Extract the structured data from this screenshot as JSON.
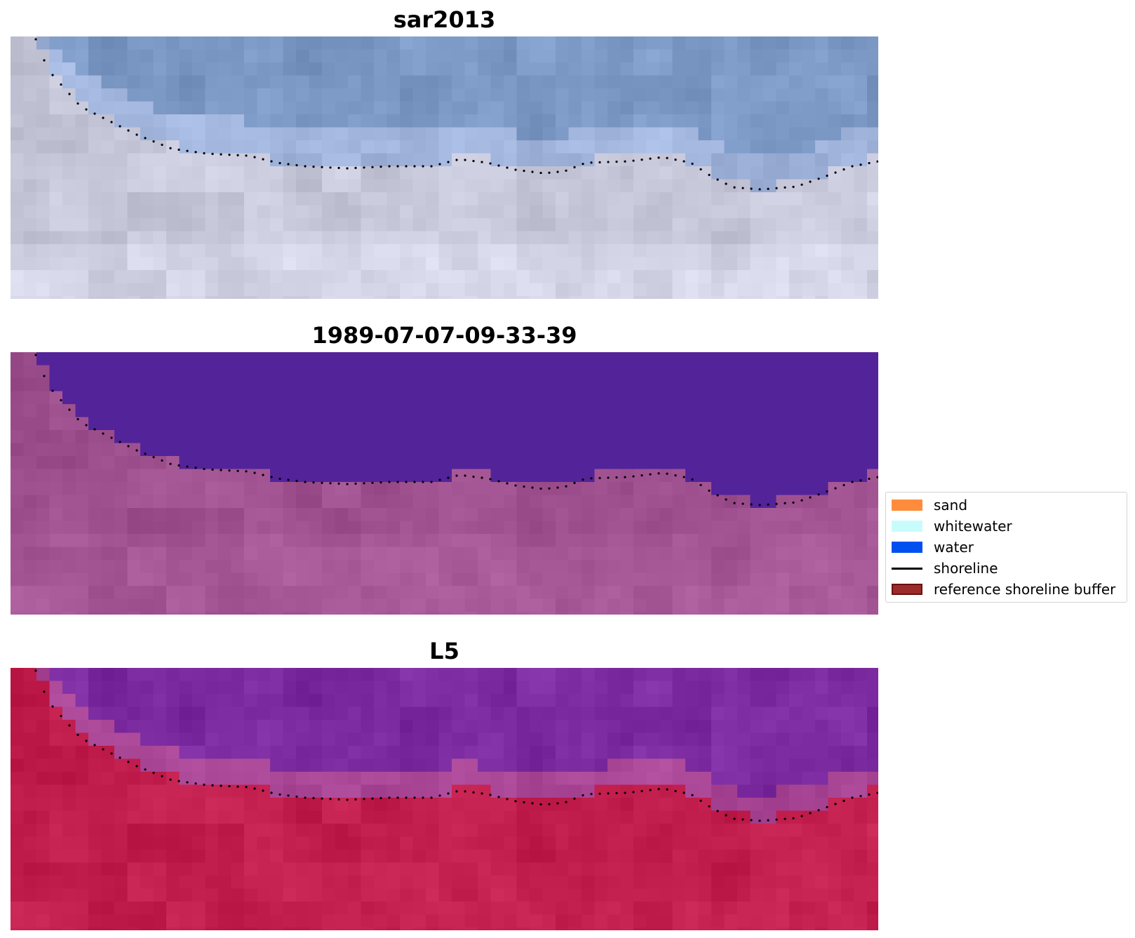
{
  "panels": [
    {
      "title": "sar2013",
      "scheme": "rgb"
    },
    {
      "title": "1989-07-07-09-33-39",
      "scheme": "classified"
    },
    {
      "title": "L5",
      "scheme": "falsecolor"
    }
  ],
  "legend": {
    "items": [
      {
        "label": "sand",
        "kind": "patch",
        "color": "#ff8c3c"
      },
      {
        "label": "whitewater",
        "kind": "patch",
        "color": "#c8fcfc"
      },
      {
        "label": "water",
        "kind": "patch",
        "color": "#0050f0"
      },
      {
        "label": "shoreline",
        "kind": "line",
        "color": "#000000"
      },
      {
        "label": "reference shoreline buffer",
        "kind": "patch",
        "color": "#9b2b2b",
        "edge": "#6a1010"
      }
    ]
  },
  "colors": {
    "classified_water": "#53239a",
    "classified_land": "#a05290",
    "falsecolor_water": "#7a2a9e",
    "falsecolor_land": "#c21e4e",
    "rgb_water": "#7a96c2",
    "rgb_land": "#c9c9dc"
  }
}
